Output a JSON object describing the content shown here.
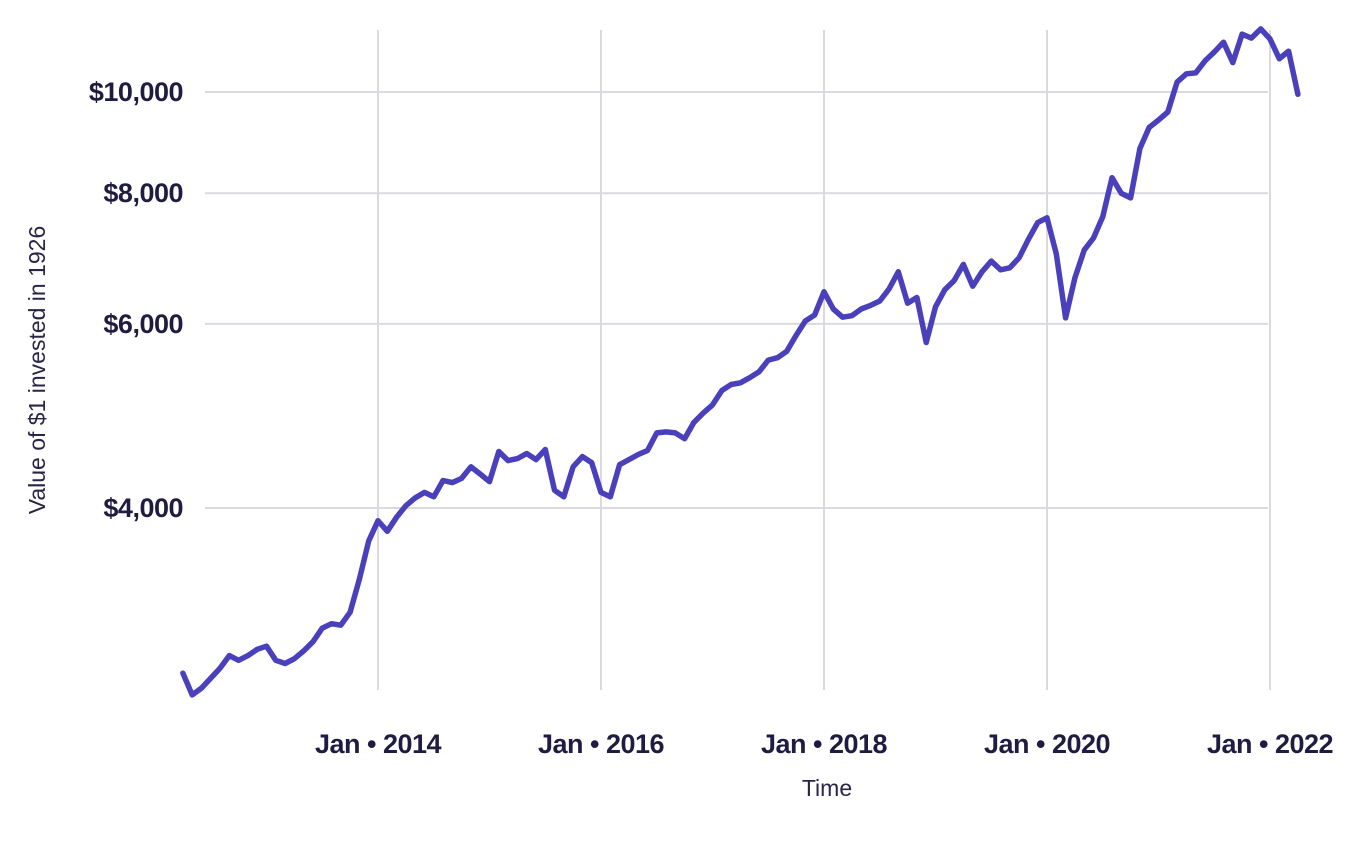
{
  "style": {
    "background": "#FFFFFF",
    "line_color": "#4A40BC",
    "grid_color": "#D9D9DF",
    "text_color": "#1F1B41"
  },
  "chart_data": {
    "type": "line",
    "title": "",
    "xlabel": "Time",
    "ylabel": "Value of $1 invested in 1926",
    "y_scale": "log",
    "ylim": [
      2500,
      11800
    ],
    "grid": true,
    "legend": false,
    "x_ticks": [
      {
        "label": "Jan • 2014",
        "year": 2014
      },
      {
        "label": "Jan • 2016",
        "year": 2016
      },
      {
        "label": "Jan • 2018",
        "year": 2018
      },
      {
        "label": "Jan • 2020",
        "year": 2020
      },
      {
        "label": "Jan • 2022",
        "year": 2022
      }
    ],
    "y_ticks": [
      {
        "label": "$10,000",
        "value": 10000
      },
      {
        "label": "$8,000",
        "value": 8000
      },
      {
        "label": "$6,000",
        "value": 6000
      },
      {
        "label": "$4,000",
        "value": 4000
      }
    ],
    "series": [
      {
        "name": "Value of $1 invested in 1926",
        "color": "#4A40BC",
        "frequency": "monthly",
        "x_start": "2012-04",
        "x_end": "2022-04",
        "values": [
          2780,
          2650,
          2690,
          2750,
          2810,
          2890,
          2860,
          2890,
          2930,
          2950,
          2860,
          2840,
          2870,
          2920,
          2980,
          3070,
          3100,
          3090,
          3180,
          3420,
          3720,
          3890,
          3800,
          3920,
          4020,
          4090,
          4140,
          4100,
          4250,
          4230,
          4270,
          4380,
          4310,
          4240,
          4530,
          4440,
          4460,
          4510,
          4450,
          4550,
          4160,
          4100,
          4380,
          4480,
          4420,
          4140,
          4100,
          4400,
          4450,
          4500,
          4540,
          4720,
          4730,
          4720,
          4660,
          4830,
          4930,
          5020,
          5180,
          5250,
          5270,
          5330,
          5400,
          5540,
          5570,
          5650,
          5850,
          6040,
          6120,
          6440,
          6200,
          6090,
          6110,
          6200,
          6250,
          6310,
          6480,
          6730,
          6280,
          6360,
          5760,
          6230,
          6470,
          6600,
          6840,
          6520,
          6730,
          6890,
          6760,
          6790,
          6940,
          7230,
          7500,
          7580,
          7000,
          6080,
          6640,
          7060,
          7250,
          7600,
          8280,
          8000,
          7920,
          8830,
          9250,
          9400,
          9570,
          10220,
          10410,
          10430,
          10710,
          10920,
          11160,
          10670,
          11360,
          11260,
          11490,
          11240,
          10760,
          10940,
          9950
        ]
      }
    ]
  }
}
